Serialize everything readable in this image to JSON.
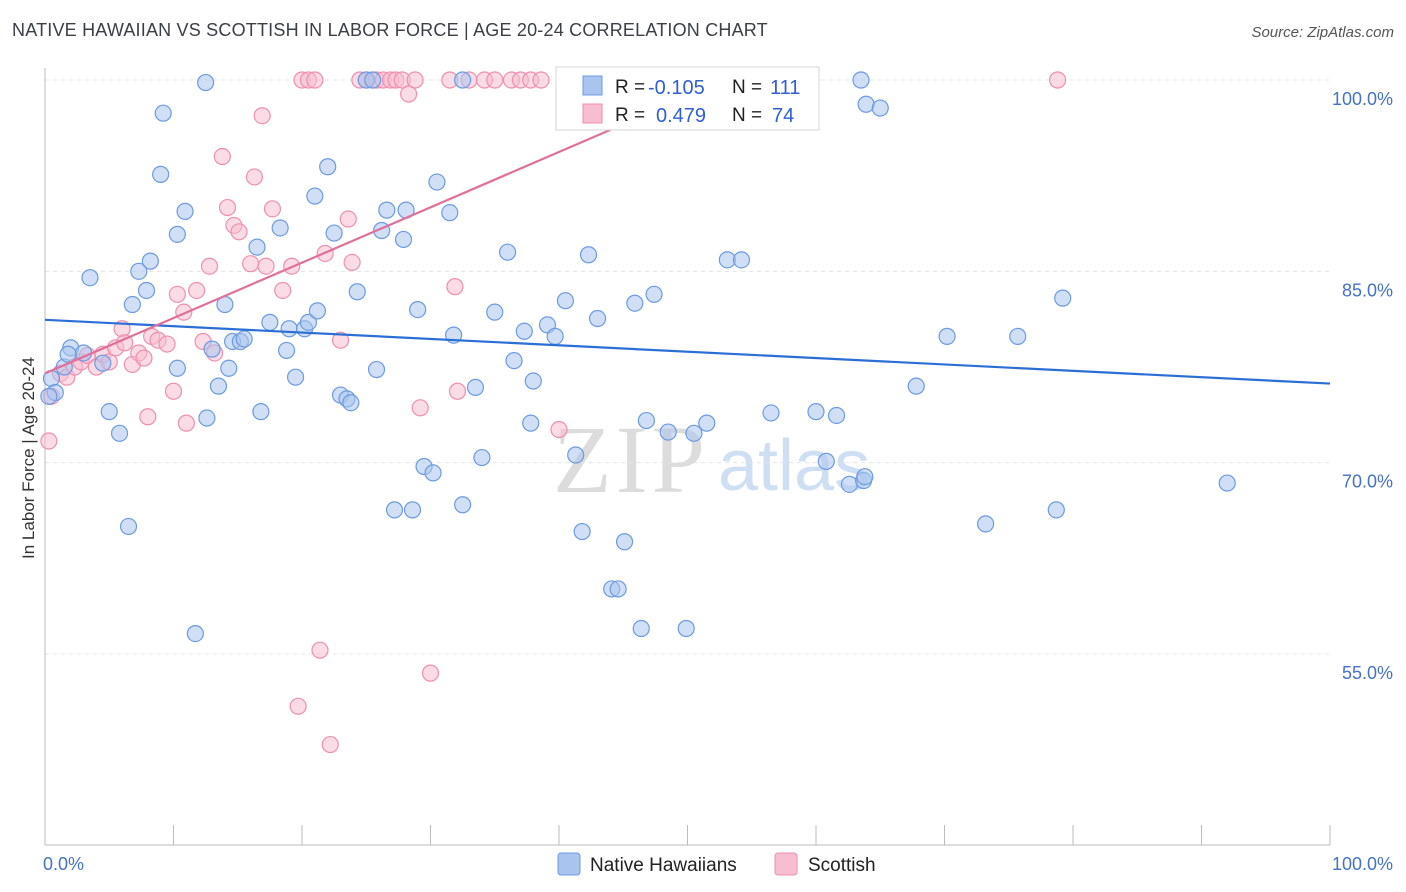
{
  "title": "NATIVE HAWAIIAN VS SCOTTISH IN LABOR FORCE | AGE 20-24 CORRELATION CHART",
  "source": "Source: ZipAtlas.com",
  "watermark": {
    "zip": "ZIP",
    "atlas": "atlas"
  },
  "colors": {
    "blue_fill": "#a9c4ef",
    "blue_stroke": "#6d9ae0",
    "blue_line": "#2b6fd6",
    "pink_fill": "#f7bdd0",
    "pink_stroke": "#ee8fb0",
    "pink_line": "#e0709a",
    "tick_text": "#4472c4",
    "grid": "#e4e4e4"
  },
  "legend_box": {
    "rows": [
      {
        "r_label": "R =",
        "r_value": "-0.105",
        "n_label": "N =",
        "n_value": "111",
        "series": "blue"
      },
      {
        "r_label": "R =",
        "r_value": "0.479",
        "n_label": "N =",
        "n_value": "74",
        "series": "pink"
      }
    ]
  },
  "chart_data": {
    "type": "scatter",
    "title": "NATIVE HAWAIIAN VS SCOTTISH IN LABOR FORCE | AGE 20-24 CORRELATION CHART",
    "xlabel": "",
    "ylabel": "In Labor Force | Age 20-24",
    "xlim": [
      0,
      100
    ],
    "ylim": [
      40,
      102
    ],
    "x_tick_labels": [
      "0.0%",
      "100.0%"
    ],
    "y_ticks": [
      55,
      70,
      85,
      100
    ],
    "y_tick_labels": [
      "55.0%",
      "70.0%",
      "85.0%",
      "100.0%"
    ],
    "grid": true,
    "legend": "bottom-center",
    "series": [
      {
        "name": "Native Hawaiians",
        "color": "blue",
        "R": -0.105,
        "N": 111,
        "trend": {
          "x": [
            0,
            100
          ],
          "y": [
            81.2,
            76.2
          ]
        },
        "points": [
          [
            0.5,
            76.6
          ],
          [
            0.8,
            75.5
          ],
          [
            1.5,
            77.5
          ],
          [
            2.0,
            79.0
          ],
          [
            1.8,
            78.5
          ],
          [
            3.0,
            78.6
          ],
          [
            3.5,
            84.5
          ],
          [
            4.5,
            77.8
          ],
          [
            5.0,
            74.0
          ],
          [
            5.8,
            72.3
          ],
          [
            6.5,
            65.0
          ],
          [
            6.8,
            82.4
          ],
          [
            7.3,
            85.0
          ],
          [
            8.2,
            85.8
          ],
          [
            7.9,
            83.5
          ],
          [
            9.0,
            92.6
          ],
          [
            9.2,
            97.4
          ],
          [
            10.3,
            87.9
          ],
          [
            10.9,
            89.7
          ],
          [
            10.3,
            77.4
          ],
          [
            11.7,
            56.6
          ],
          [
            12.5,
            99.8
          ],
          [
            12.6,
            73.5
          ],
          [
            13.0,
            78.9
          ],
          [
            13.5,
            76.0
          ],
          [
            14.0,
            82.4
          ],
          [
            14.3,
            77.4
          ],
          [
            14.6,
            79.5
          ],
          [
            15.2,
            79.5
          ],
          [
            15.5,
            79.7
          ],
          [
            16.5,
            86.9
          ],
          [
            16.8,
            74.0
          ],
          [
            17.5,
            81.0
          ],
          [
            18.3,
            88.4
          ],
          [
            18.8,
            78.8
          ],
          [
            19.0,
            80.5
          ],
          [
            19.5,
            76.7
          ],
          [
            20.2,
            80.5
          ],
          [
            20.5,
            81.0
          ],
          [
            21.0,
            90.9
          ],
          [
            21.2,
            81.9
          ],
          [
            22.0,
            93.2
          ],
          [
            22.5,
            88.0
          ],
          [
            23.0,
            75.3
          ],
          [
            23.5,
            75.0
          ],
          [
            23.8,
            74.7
          ],
          [
            24.3,
            83.4
          ],
          [
            25.0,
            100.0
          ],
          [
            25.5,
            100.0
          ],
          [
            25.8,
            77.3
          ],
          [
            26.2,
            88.2
          ],
          [
            26.6,
            89.8
          ],
          [
            27.2,
            66.3
          ],
          [
            27.9,
            87.5
          ],
          [
            28.1,
            89.8
          ],
          [
            28.6,
            66.3
          ],
          [
            29.0,
            82.0
          ],
          [
            29.5,
            69.7
          ],
          [
            30.2,
            69.2
          ],
          [
            30.5,
            92.0
          ],
          [
            31.5,
            89.6
          ],
          [
            31.8,
            80.0
          ],
          [
            32.5,
            100.0
          ],
          [
            32.5,
            66.7
          ],
          [
            33.5,
            75.9
          ],
          [
            34.0,
            70.4
          ],
          [
            35.0,
            81.8
          ],
          [
            36.0,
            86.5
          ],
          [
            36.5,
            78.0
          ],
          [
            37.3,
            80.3
          ],
          [
            37.8,
            73.1
          ],
          [
            38.0,
            76.4
          ],
          [
            39.1,
            80.8
          ],
          [
            39.7,
            79.9
          ],
          [
            40.5,
            82.7
          ],
          [
            41.3,
            70.6
          ],
          [
            41.8,
            64.6
          ],
          [
            42.3,
            86.3
          ],
          [
            43.0,
            81.3
          ],
          [
            44.1,
            60.1
          ],
          [
            44.6,
            60.1
          ],
          [
            45.1,
            63.8
          ],
          [
            45.9,
            82.5
          ],
          [
            46.4,
            57.0
          ],
          [
            46.8,
            73.3
          ],
          [
            47.4,
            83.2
          ],
          [
            48.5,
            72.4
          ],
          [
            49.9,
            57.0
          ],
          [
            50.5,
            72.3
          ],
          [
            51.5,
            73.1
          ],
          [
            53.1,
            85.9
          ],
          [
            54.2,
            85.9
          ],
          [
            56.5,
            73.9
          ],
          [
            59.3,
            100.0
          ],
          [
            60.0,
            74.0
          ],
          [
            60.8,
            70.1
          ],
          [
            61.6,
            73.7
          ],
          [
            62.6,
            68.3
          ],
          [
            63.5,
            100.0
          ],
          [
            63.7,
            68.6
          ],
          [
            63.8,
            68.9
          ],
          [
            63.9,
            98.1
          ],
          [
            65.0,
            97.8
          ],
          [
            67.8,
            76.0
          ],
          [
            70.2,
            79.9
          ],
          [
            73.2,
            65.2
          ],
          [
            75.7,
            79.9
          ],
          [
            78.7,
            66.3
          ],
          [
            79.2,
            82.9
          ],
          [
            92.0,
            68.4
          ],
          [
            0.3,
            75.2
          ]
        ]
      },
      {
        "name": "Scottish",
        "color": "pink",
        "R": 0.479,
        "N": 74,
        "trend": {
          "x": [
            0,
            53
          ],
          "y": [
            77.0,
            100.0
          ]
        },
        "points": [
          [
            0.3,
            71.7
          ],
          [
            0.5,
            75.2
          ],
          [
            1.2,
            77.0
          ],
          [
            1.7,
            76.7
          ],
          [
            2.3,
            77.5
          ],
          [
            2.8,
            77.9
          ],
          [
            3.3,
            78.4
          ],
          [
            4.0,
            77.5
          ],
          [
            4.5,
            78.5
          ],
          [
            5.0,
            77.9
          ],
          [
            5.5,
            79.0
          ],
          [
            6.0,
            80.5
          ],
          [
            6.2,
            79.4
          ],
          [
            6.8,
            77.7
          ],
          [
            7.3,
            78.6
          ],
          [
            7.7,
            78.2
          ],
          [
            8.0,
            73.6
          ],
          [
            8.3,
            79.9
          ],
          [
            8.8,
            79.6
          ],
          [
            9.5,
            79.3
          ],
          [
            10.0,
            75.6
          ],
          [
            10.3,
            83.2
          ],
          [
            10.8,
            81.8
          ],
          [
            11.0,
            73.1
          ],
          [
            11.8,
            83.5
          ],
          [
            12.3,
            79.5
          ],
          [
            12.8,
            85.4
          ],
          [
            13.2,
            78.6
          ],
          [
            13.8,
            94.0
          ],
          [
            14.2,
            90.0
          ],
          [
            14.7,
            88.6
          ],
          [
            15.1,
            88.1
          ],
          [
            16.0,
            85.6
          ],
          [
            16.3,
            92.4
          ],
          [
            16.9,
            97.2
          ],
          [
            17.2,
            85.4
          ],
          [
            17.7,
            89.9
          ],
          [
            18.5,
            83.5
          ],
          [
            19.2,
            85.4
          ],
          [
            19.7,
            50.9
          ],
          [
            20.0,
            100.0
          ],
          [
            20.5,
            100.0
          ],
          [
            21.0,
            100.0
          ],
          [
            21.4,
            55.3
          ],
          [
            21.8,
            86.4
          ],
          [
            22.2,
            47.9
          ],
          [
            23.0,
            79.6
          ],
          [
            23.6,
            89.1
          ],
          [
            23.9,
            85.7
          ],
          [
            24.5,
            100.0
          ],
          [
            25.0,
            100.0
          ],
          [
            25.8,
            100.0
          ],
          [
            26.3,
            100.0
          ],
          [
            26.9,
            100.0
          ],
          [
            27.3,
            100.0
          ],
          [
            27.8,
            100.0
          ],
          [
            28.3,
            98.9
          ],
          [
            28.8,
            100.0
          ],
          [
            29.2,
            74.3
          ],
          [
            30.0,
            53.5
          ],
          [
            31.5,
            100.0
          ],
          [
            31.9,
            83.8
          ],
          [
            32.1,
            75.6
          ],
          [
            33.0,
            100.0
          ],
          [
            34.2,
            100.0
          ],
          [
            35.0,
            100.0
          ],
          [
            36.3,
            100.0
          ],
          [
            37.0,
            100.0
          ],
          [
            37.8,
            100.0
          ],
          [
            38.6,
            100.0
          ],
          [
            40.0,
            72.6
          ],
          [
            41.5,
            100.0
          ],
          [
            53.5,
            100.0
          ],
          [
            78.8,
            100.0
          ]
        ]
      }
    ]
  },
  "bottom_legend": [
    {
      "label": "Native Hawaiians",
      "series": "blue"
    },
    {
      "label": "Scottish",
      "series": "pink"
    }
  ]
}
